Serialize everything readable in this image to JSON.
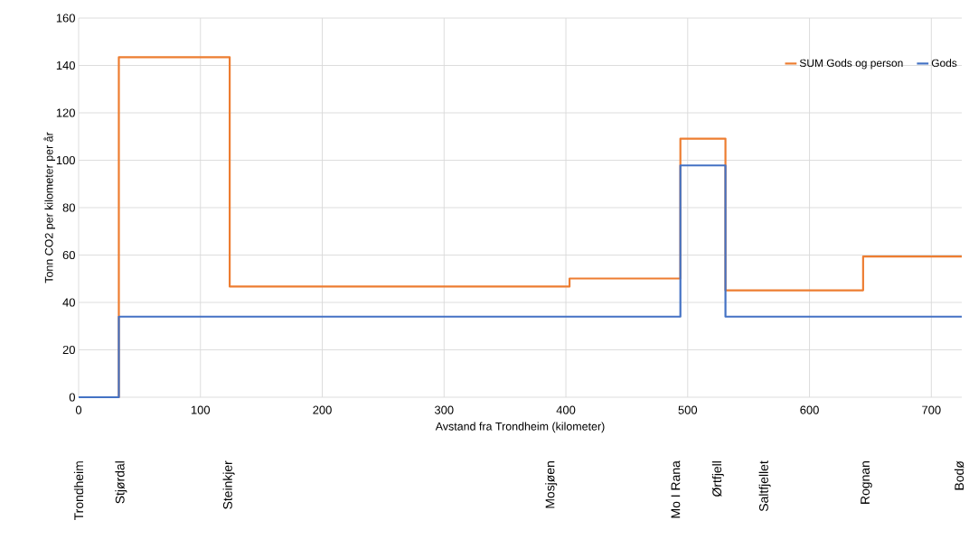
{
  "chart_data": {
    "type": "step",
    "xlabel": "Avstand fra Trondheim (kilometer)",
    "ylabel": "Tonn CO2 per kilometer per år",
    "xlim": [
      0,
      725
    ],
    "ylim": [
      0,
      160
    ],
    "xticks": [
      0,
      100,
      200,
      300,
      400,
      500,
      600,
      700
    ],
    "yticks": [
      0,
      20,
      40,
      60,
      80,
      100,
      120,
      140,
      160
    ],
    "grid": true,
    "legend": "top right",
    "series": [
      {
        "name": "SUM Gods og person",
        "color": "#ed7d31",
        "x": [
          0,
          33,
          124,
          403,
          494,
          531,
          644,
          725
        ],
        "values": [
          0,
          143.5,
          46.7,
          50.1,
          109.1,
          45.1,
          59.4,
          59.4
        ]
      },
      {
        "name": "Gods",
        "color": "#4472c4",
        "x": [
          0,
          33,
          494,
          531,
          725
        ],
        "values": [
          0,
          34,
          97.8,
          34,
          34
        ]
      }
    ],
    "annotations": [
      "Trondheim",
      "Stjørdal",
      "Steinkjer",
      "Mosjøen",
      "Mo I Rana",
      "Ørtfjell",
      "Saltfjellet",
      "Rognan",
      "Bodø"
    ]
  }
}
